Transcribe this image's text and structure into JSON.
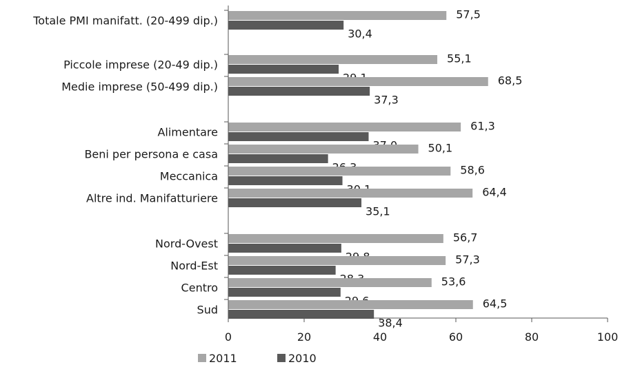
{
  "chart_data": {
    "type": "bar",
    "orientation": "horizontal",
    "categories": [
      "Totale PMI manifatt. (20-499 dip.)",
      "Piccole imprese (20-49 dip.)",
      "Medie imprese (50-499 dip.)",
      "Alimentare",
      "Beni per persona e casa",
      "Meccanica",
      "Altre ind. Manifatturiere",
      "Nord-Ovest",
      "Nord-Est",
      "Centro",
      "Sud"
    ],
    "groups": [
      [
        0
      ],
      [
        1,
        2
      ],
      [
        3,
        4,
        5,
        6
      ],
      [
        7,
        8,
        9,
        10
      ]
    ],
    "series": [
      {
        "name": "2011",
        "color": "#a6a6a6",
        "values": [
          57.5,
          55.1,
          68.5,
          61.3,
          50.1,
          58.6,
          64.4,
          56.7,
          57.3,
          53.6,
          64.5
        ],
        "labels": [
          "57,5",
          "55,1",
          "68,5",
          "61,3",
          "50,1",
          "58,6",
          "64,4",
          "56,7",
          "57,3",
          "53,6",
          "64,5"
        ]
      },
      {
        "name": "2010",
        "color": "#595959",
        "values": [
          30.4,
          29.1,
          37.3,
          37.0,
          26.3,
          30.1,
          35.1,
          29.8,
          28.3,
          29.6,
          38.4
        ],
        "labels": [
          "30,4",
          "29,1",
          "37,3",
          "37,0",
          "26,3",
          "30,1",
          "35,1",
          "29,8",
          "28,3",
          "29,6",
          "38,4"
        ]
      }
    ],
    "xlim": [
      0,
      100
    ],
    "xticks": [
      "0",
      "20",
      "40",
      "60",
      "80",
      "100"
    ],
    "grid": false,
    "legend_position": "bottom-left"
  }
}
